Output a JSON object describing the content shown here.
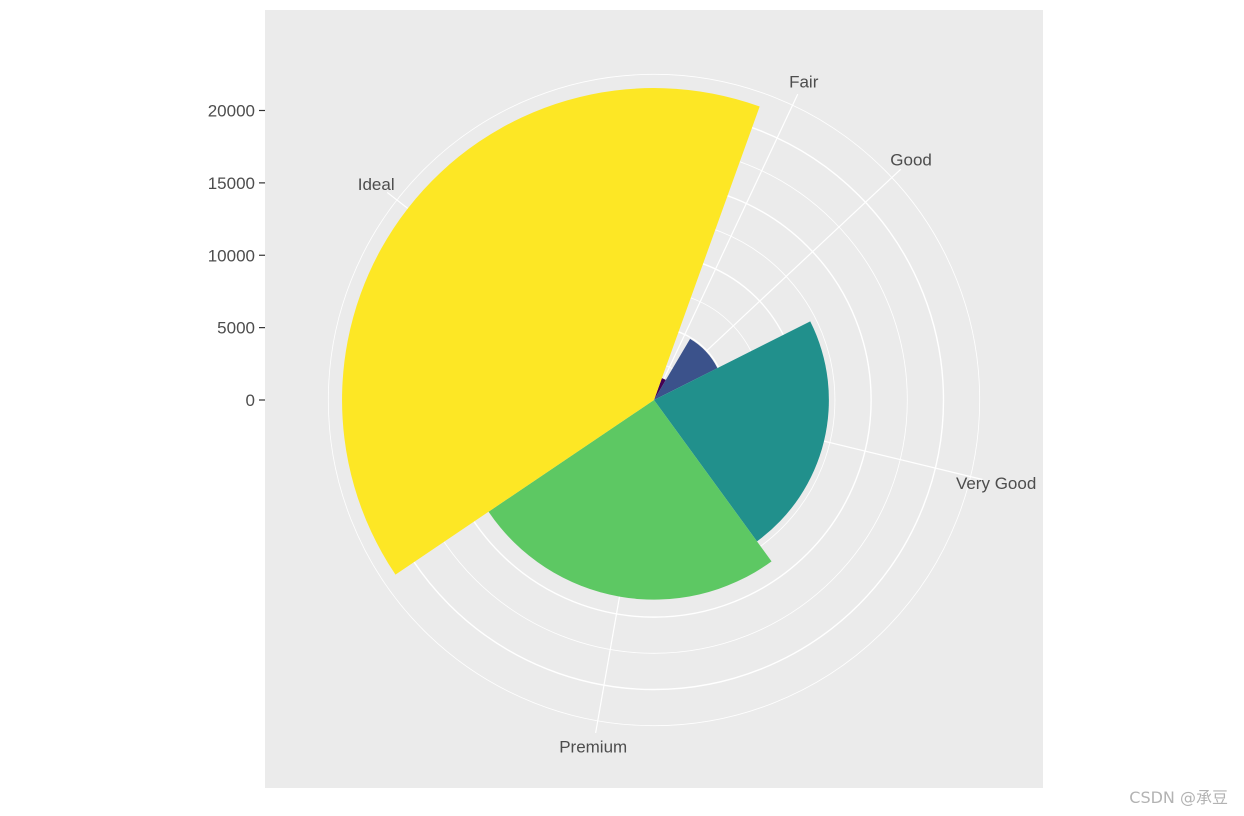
{
  "chart_data": {
    "type": "bar",
    "coord": "polar",
    "categories": [
      "Fair",
      "Good",
      "Very Good",
      "Premium",
      "Ideal"
    ],
    "values": [
      1610,
      4906,
      12082,
      13791,
      21551
    ],
    "colors": [
      "#440154",
      "#3b528b",
      "#21908c",
      "#5dc863",
      "#fde725"
    ],
    "y_ticks": [
      0,
      5000,
      10000,
      15000,
      20000
    ],
    "y_tick_labels": [
      "0",
      "5000",
      "10000",
      "15000",
      "20000"
    ],
    "legend": "none",
    "grid": true,
    "panel_background": "#ebebeb",
    "grid_color": "#ffffff"
  },
  "watermark": "CSDN @承豆"
}
